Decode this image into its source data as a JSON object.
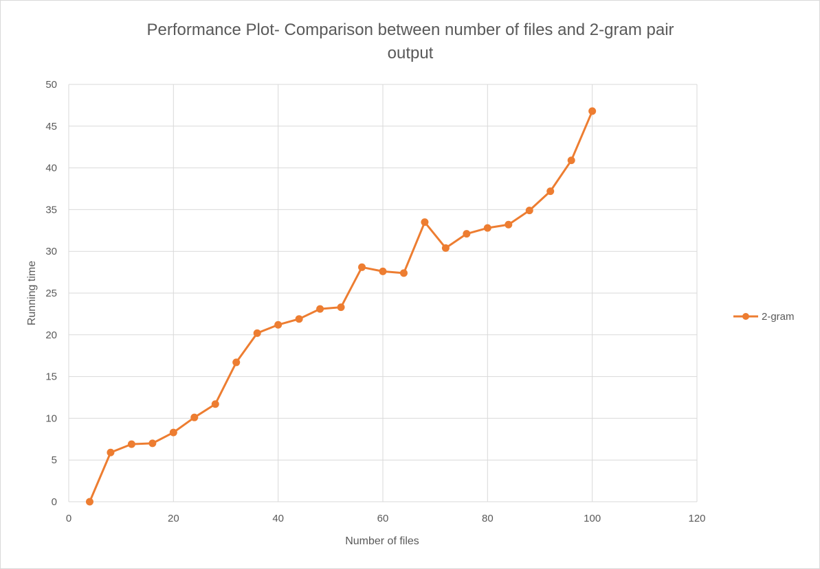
{
  "chart_data": {
    "type": "line",
    "title_lines": [
      "Performance Plot- Comparison between number of files and 2-gram pair",
      "output"
    ],
    "xlabel": "Number of files",
    "ylabel": "Running time",
    "xlim": [
      0,
      120
    ],
    "ylim": [
      0,
      50
    ],
    "x_ticks": [
      0,
      20,
      40,
      60,
      80,
      100,
      120
    ],
    "y_ticks": [
      0,
      5,
      10,
      15,
      20,
      25,
      30,
      35,
      40,
      45,
      50
    ],
    "grid": true,
    "legend_position": "right",
    "series": [
      {
        "name": "2-gram",
        "color": "#ed7d31",
        "x": [
          4,
          8,
          12,
          16,
          20,
          24,
          28,
          32,
          36,
          40,
          44,
          48,
          52,
          56,
          60,
          64,
          68,
          72,
          76,
          80,
          84,
          88,
          92,
          96,
          100
        ],
        "y": [
          0,
          5.9,
          6.9,
          7.0,
          8.3,
          10.1,
          11.7,
          16.7,
          20.2,
          21.2,
          21.9,
          23.1,
          23.3,
          28.1,
          27.6,
          27.4,
          33.5,
          30.4,
          32.1,
          32.8,
          33.2,
          34.9,
          37.2,
          40.9,
          46.8
        ]
      }
    ]
  }
}
